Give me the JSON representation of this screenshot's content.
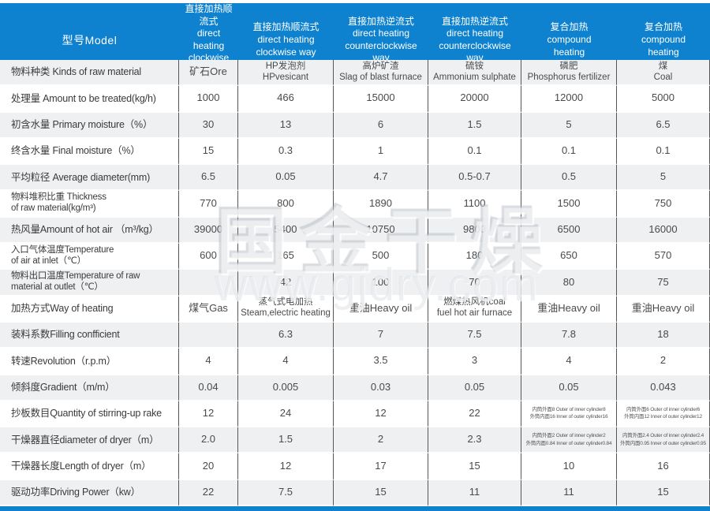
{
  "colors": {
    "header_blue": "#0f82cf",
    "row_alt": "#eef0f2"
  },
  "watermark": {
    "text1": "国金干燥",
    "text2": "www.gjdry.com"
  },
  "header": {
    "model_label": "型号Model",
    "columns": [
      {
        "lines": [
          "直接加热顺流式",
          "direct heating",
          "clockwise way"
        ]
      },
      {
        "lines": [
          "直接加热顺流式",
          "direct heating",
          "clockwise way"
        ]
      },
      {
        "lines": [
          "直接加热逆流式",
          "direct heating",
          "counterclockwise",
          "way"
        ]
      },
      {
        "lines": [
          "直接加热逆流式",
          "direct heating",
          "counterclockwise",
          "way"
        ]
      },
      {
        "lines": [
          "复合加热",
          "compound",
          "heating"
        ]
      },
      {
        "lines": [
          "复合加热",
          "compound",
          "heating"
        ]
      }
    ]
  },
  "rows": [
    {
      "label": "物料种类 Kinds of raw material",
      "cells": [
        "矿石Ore",
        {
          "lines": [
            "HP发泡剂",
            "HPvesicant"
          ]
        },
        {
          "lines": [
            "高炉矿渣",
            "Slag of blast furnace"
          ]
        },
        {
          "lines": [
            "硫铵",
            "Ammonium sulphate"
          ]
        },
        {
          "lines": [
            "磷肥",
            "Phosphorus fertilizer"
          ]
        },
        {
          "lines": [
            "煤",
            "Coal"
          ]
        }
      ]
    },
    {
      "label": "处理量 Amount to be treated(kg/h)",
      "cells": [
        "1000",
        "466",
        "15000",
        "20000",
        "12000",
        "5000"
      ]
    },
    {
      "label": "初含水量 Primary moisture（%）",
      "cells": [
        "30",
        "13",
        "6",
        "1.5",
        "5",
        "6.5"
      ]
    },
    {
      "label": "终含水量 Final moisture（%）",
      "cells": [
        "15",
        "0.3",
        "1",
        "0.1",
        "0.1",
        "0.1"
      ]
    },
    {
      "label": "平均粒径 Average diameter(mm)",
      "cells": [
        "6.5",
        "0.05",
        "4.7",
        "0.5-0.7",
        "0.5",
        "5"
      ]
    },
    {
      "label": {
        "lines": [
          "物料堆积比重 Thickness",
          "of raw material(kg/m³)"
        ]
      },
      "cells": [
        "770",
        "800",
        "1890",
        "1100",
        "1500",
        "750"
      ]
    },
    {
      "label": "热风量Amount of hot air （m³/kg）",
      "cells": [
        "39000",
        "5400",
        "10750",
        "9800",
        "6500",
        "16000"
      ]
    },
    {
      "label": {
        "lines": [
          "入口气体温度Temperature",
          "of air at inlet（℃）"
        ]
      },
      "cells": [
        "600",
        "165",
        "500",
        "180",
        "650",
        "570"
      ]
    },
    {
      "label": {
        "lines": [
          "物料出口温度Temperature of raw",
          "material at outlet（℃）"
        ]
      },
      "cells": [
        "",
        "42",
        "100",
        "70",
        "80",
        "75"
      ]
    },
    {
      "label": "加热方式Way of heating",
      "cells": [
        "煤气Gas",
        {
          "lines": [
            "蒸气式电加热",
            "Steam,electric heating"
          ]
        },
        "重油Heavy oil",
        {
          "lines": [
            "燃煤热风机coal",
            "fuel hot air furnace"
          ]
        },
        "重油Heavy oil",
        "重油Heavy oil"
      ]
    },
    {
      "label": "装料系数Filling confficient",
      "cells": [
        "",
        "6.3",
        "7",
        "7.5",
        "7.8",
        "18"
      ]
    },
    {
      "label": "转速Revolution（r.p.m）",
      "cells": [
        "4",
        "4",
        "3.5",
        "3",
        "4",
        "2"
      ]
    },
    {
      "label": "倾斜度Gradient（m/m）",
      "cells": [
        "0.04",
        "0.005",
        "0.03",
        "0.05",
        "0.05",
        "0.043"
      ]
    },
    {
      "label": "抄板数目Quantity of stirring-up rake",
      "cells": [
        "12",
        "24",
        "12",
        "22",
        {
          "small": true,
          "lines": [
            "内筒外面8 Outer of inner cylinder8",
            "外筒内面16 Inner of outer cylinder16"
          ]
        },
        {
          "small": true,
          "lines": [
            "内筒外面6 Outer of inner cylinder6",
            "外筒内面12 Inner of outer cylinder12"
          ]
        }
      ]
    },
    {
      "label": "干燥器直径diameter of dryer（m）",
      "cells": [
        "2.0",
        "1.5",
        "2",
        "2.3",
        {
          "small": true,
          "lines": [
            "内筒外面2 Outer of inner cylinder2",
            "外筒内面0.84 Inner of outer cylinder0.84"
          ]
        },
        {
          "small": true,
          "lines": [
            "内筒外面2.4 Outer of inner cylinder2.4",
            "外筒内面0.95 Inner of outer cylinder0.95"
          ]
        }
      ]
    },
    {
      "label": "干燥器长度Length of dryer（m）",
      "cells": [
        "20",
        "12",
        "17",
        "15",
        "10",
        "16"
      ]
    },
    {
      "label": "驱动功率Driving Power（kw）",
      "cells": [
        "22",
        "7.5",
        "15",
        "11",
        "11",
        "15"
      ]
    }
  ]
}
